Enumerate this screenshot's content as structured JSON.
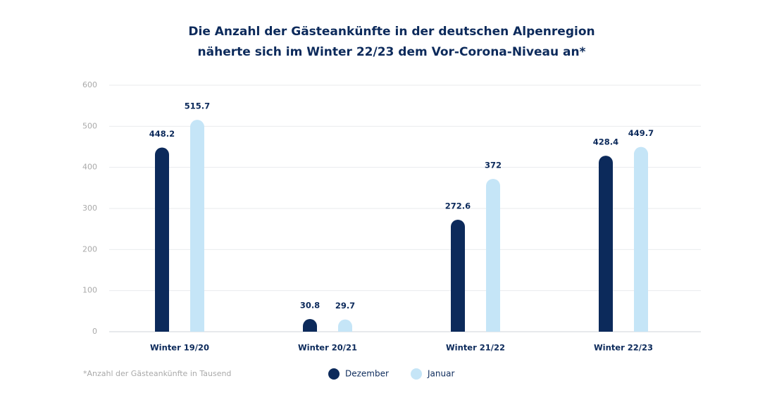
{
  "chart_data": {
    "type": "bar",
    "title": [
      "Die Anzahl der Gästeankünfte in der deutschen Alpenregion",
      "näherte sich im Winter 22/23 dem Vor-Corona-Niveau an*"
    ],
    "categories": [
      "Winter 19/20",
      "Winter 20/21",
      "Winter 21/22",
      "Winter 22/23"
    ],
    "series": [
      {
        "name": "Dezember",
        "color": "#0c2a5b",
        "values": [
          448.2,
          30.8,
          272.6,
          428.4
        ]
      },
      {
        "name": "Januar",
        "color": "#c5e5f7",
        "values": [
          515.7,
          29.7,
          372,
          449.7
        ]
      }
    ],
    "ylim": [
      0,
      600
    ],
    "yticks": [
      0,
      100,
      200,
      300,
      400,
      500,
      600
    ],
    "grid": true,
    "footnote": "*Anzahl der Gästeankünfte in Tausend"
  }
}
